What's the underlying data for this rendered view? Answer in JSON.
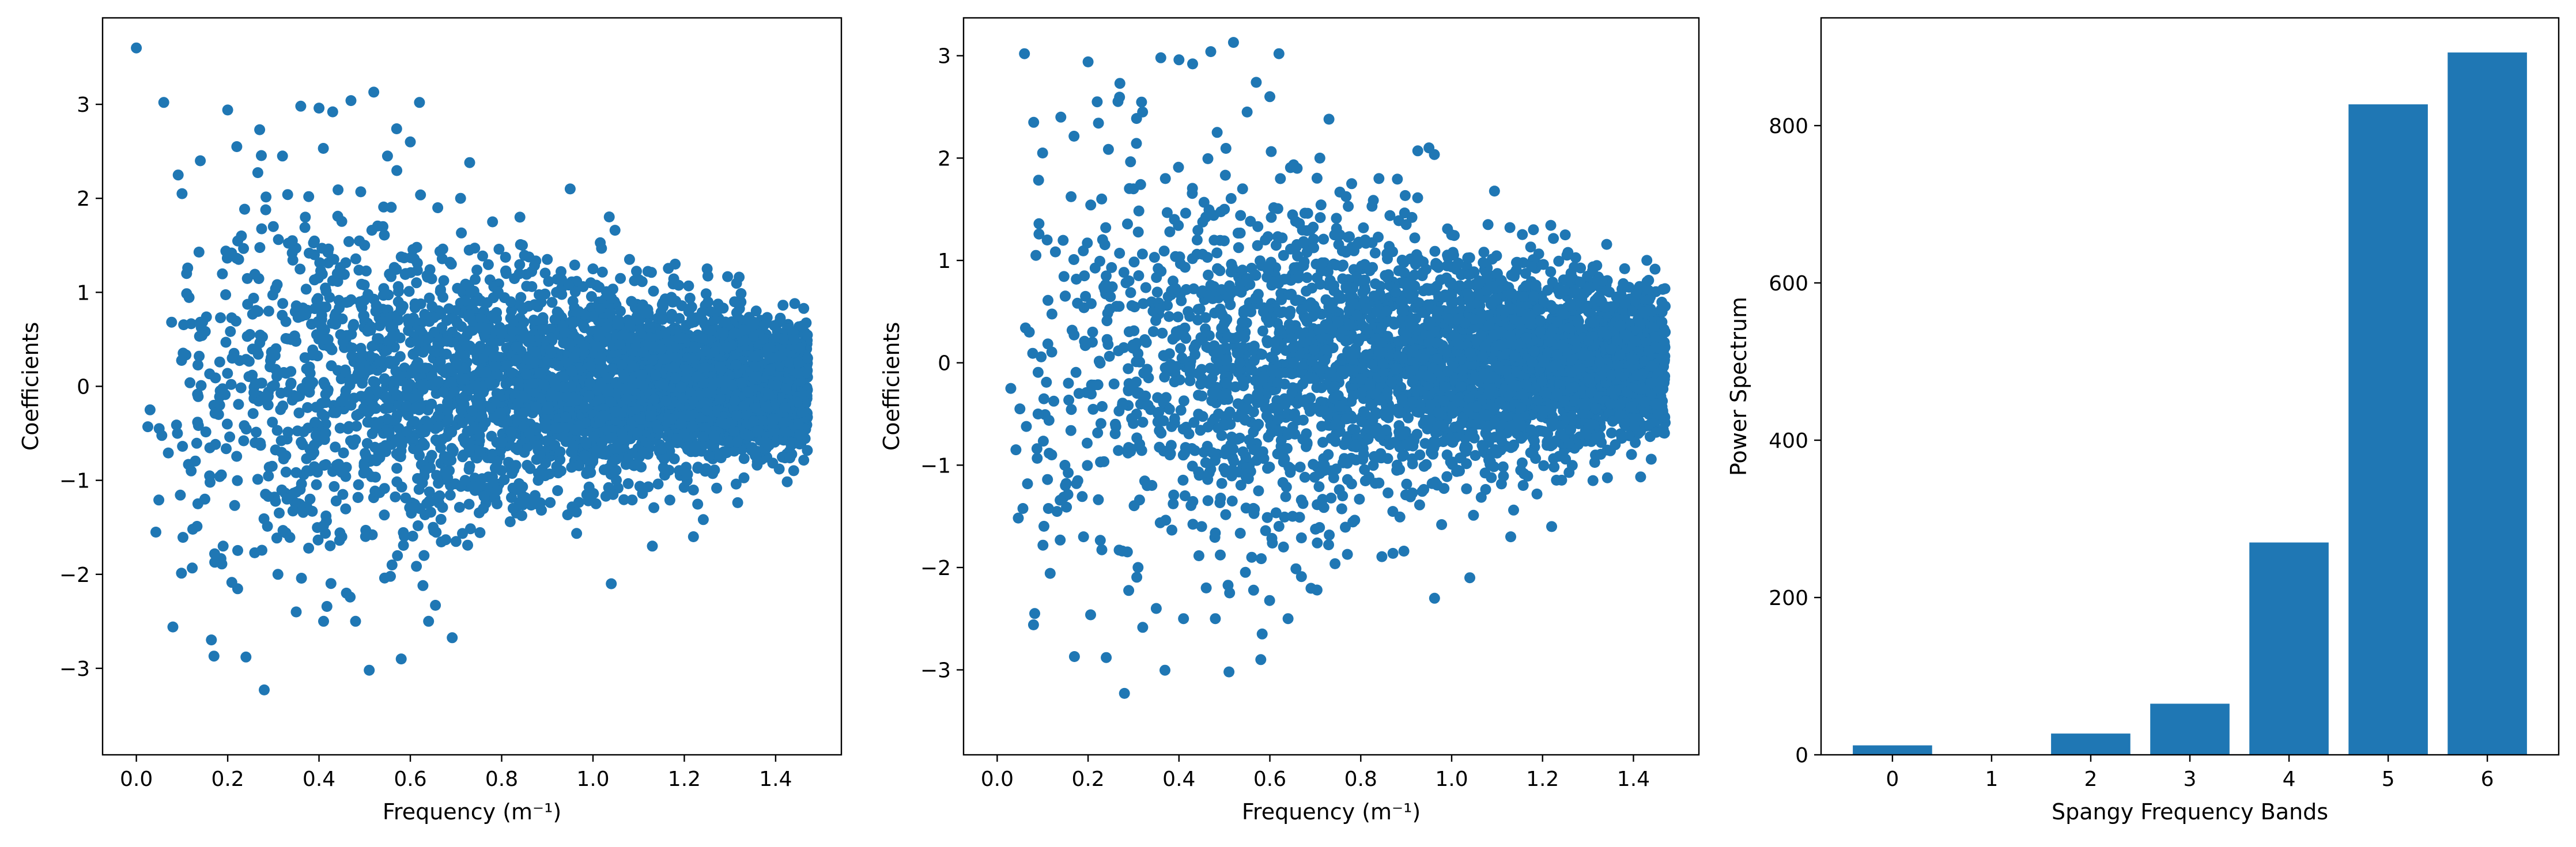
{
  "chart_data": [
    {
      "type": "scatter",
      "xlabel": "Frequency (m⁻¹)",
      "ylabel": "Coefficients",
      "xlim": [
        -0.074,
        1.544
      ],
      "ylim": [
        -3.92,
        3.92
      ],
      "xticks": [
        0.0,
        0.2,
        0.4,
        0.6,
        0.8,
        1.0,
        1.2,
        1.4
      ],
      "xtick_labels": [
        "0.0",
        "0.2",
        "0.4",
        "0.6",
        "0.8",
        "1.0",
        "1.2",
        "1.4"
      ],
      "yticks": [
        -3,
        -2,
        -1,
        0,
        1,
        2,
        3
      ],
      "ytick_labels": [
        "−3",
        "−2",
        "−1",
        "0",
        "1",
        "2",
        "3"
      ],
      "grid": false,
      "color": "#1f77b4",
      "marker": "circle",
      "points_shown_approx": 4000,
      "x": [
        0.0,
        0.06,
        0.1,
        0.14,
        0.2,
        0.22,
        0.27,
        0.32,
        0.36,
        0.4,
        0.43,
        0.47,
        0.52,
        0.57,
        0.62,
        0.73,
        0.95,
        0.3,
        0.37,
        0.44,
        0.5,
        0.55,
        0.6,
        0.66,
        0.71,
        0.78,
        0.84,
        0.9,
        1.0,
        1.08,
        1.18,
        1.25,
        0.08,
        0.17,
        0.24,
        0.28,
        0.35,
        0.41,
        0.48,
        0.51,
        0.58,
        0.64,
        0.03,
        0.05,
        0.09,
        0.12,
        0.15,
        0.18,
        0.21,
        0.26,
        0.29,
        0.33,
        0.38,
        0.42,
        0.45,
        0.49,
        0.53,
        0.56,
        0.59,
        0.61,
        0.65,
        0.68,
        0.72,
        0.75,
        0.79,
        0.82,
        0.86,
        0.89,
        0.93,
        0.97,
        1.02,
        1.06,
        1.11,
        1.15,
        1.2,
        1.24,
        1.29,
        1.33,
        1.38,
        1.42,
        1.45,
        1.47,
        0.11,
        0.19,
        0.23,
        0.31,
        0.39,
        0.46,
        0.54,
        0.63,
        0.69,
        0.76,
        0.81,
        0.88,
        0.92,
        0.99,
        1.04,
        1.13,
        1.22,
        1.31,
        1.36,
        1.44
      ],
      "y": [
        3.6,
        3.02,
        2.05,
        2.4,
        2.94,
        2.55,
        2.73,
        2.45,
        2.98,
        2.96,
        2.92,
        3.04,
        3.13,
        2.74,
        3.02,
        2.38,
        2.1,
        1.7,
        1.8,
        1.2,
        1.5,
        2.45,
        2.6,
        1.9,
        2.0,
        1.75,
        1.8,
        1.35,
        1.25,
        1.35,
        1.3,
        1.25,
        -2.56,
        -2.87,
        -2.88,
        -3.23,
        -2.4,
        -2.5,
        -2.5,
        -3.02,
        -2.9,
        -2.5,
        -0.25,
        -0.45,
        -0.5,
        -0.9,
        -1.2,
        -0.3,
        0.3,
        -0.6,
        0.8,
        -1.2,
        -0.9,
        0.5,
        -1.6,
        0.9,
        -0.4,
        -1.9,
        1.2,
        0.2,
        -1.5,
        0.7,
        -1.0,
        0.4,
        -0.8,
        0.9,
        -0.5,
        0.6,
        -0.9,
        0.5,
        -0.6,
        0.8,
        -0.7,
        0.4,
        -0.5,
        0.7,
        -0.4,
        0.6,
        -0.6,
        0.5,
        -0.4,
        0.3,
        1.2,
        -1.7,
        1.6,
        -2.0,
        1.4,
        -2.2,
        1.7,
        -1.8,
        1.3,
        -1.3,
        1.2,
        -1.0,
        1.0,
        -0.9,
        -2.1,
        -1.7,
        -1.6,
        0.9,
        -0.8,
        0.5
      ]
    },
    {
      "type": "scatter",
      "xlabel": "Frequency (m⁻¹)",
      "ylabel": "Coefficients",
      "xlim": [
        -0.074,
        1.544
      ],
      "ylim": [
        -3.83,
        3.37
      ],
      "xticks": [
        0.0,
        0.2,
        0.4,
        0.6,
        0.8,
        1.0,
        1.2,
        1.4
      ],
      "xtick_labels": [
        "0.0",
        "0.2",
        "0.4",
        "0.6",
        "0.8",
        "1.0",
        "1.2",
        "1.4"
      ],
      "yticks": [
        -3,
        -2,
        -1,
        0,
        1,
        2,
        3
      ],
      "ytick_labels": [
        "−3",
        "−2",
        "−1",
        "0",
        "1",
        "2",
        "3"
      ],
      "grid": false,
      "color": "#1f77b4",
      "marker": "circle",
      "points_shown_approx": 4000,
      "x": [
        0.06,
        0.1,
        0.14,
        0.2,
        0.22,
        0.27,
        0.32,
        0.36,
        0.4,
        0.43,
        0.47,
        0.52,
        0.57,
        0.62,
        0.73,
        0.95,
        0.3,
        0.37,
        0.44,
        0.5,
        0.55,
        0.6,
        0.66,
        0.71,
        0.78,
        0.84,
        0.9,
        1.0,
        1.08,
        1.18,
        1.25,
        0.08,
        0.17,
        0.24,
        0.28,
        0.35,
        0.41,
        0.48,
        0.51,
        0.58,
        0.64,
        0.03,
        0.05,
        0.09,
        0.12,
        0.15,
        0.18,
        0.21,
        0.26,
        0.29,
        0.33,
        0.38,
        0.42,
        0.45,
        0.49,
        0.53,
        0.56,
        0.59,
        0.61,
        0.65,
        0.68,
        0.72,
        0.75,
        0.79,
        0.82,
        0.86,
        0.89,
        0.93,
        0.97,
        1.02,
        1.06,
        1.11,
        1.15,
        1.2,
        1.24,
        1.29,
        1.33,
        1.38,
        1.42,
        1.45,
        1.47,
        0.11,
        0.19,
        0.23,
        0.31,
        0.39,
        0.46,
        0.54,
        0.63,
        0.69,
        0.76,
        0.81,
        0.88,
        0.92,
        0.99,
        1.04,
        1.13,
        1.22,
        1.31,
        1.36,
        1.44
      ],
      "y": [
        3.02,
        2.05,
        2.4,
        2.94,
        2.55,
        2.73,
        2.45,
        2.98,
        2.96,
        2.92,
        3.04,
        3.13,
        2.74,
        3.02,
        2.38,
        2.1,
        1.7,
        1.8,
        1.2,
        1.5,
        2.45,
        2.6,
        1.9,
        2.0,
        1.75,
        1.8,
        1.35,
        1.25,
        1.35,
        1.3,
        1.25,
        -2.56,
        -2.87,
        -2.88,
        -3.23,
        -2.4,
        -2.5,
        -2.5,
        -3.02,
        -2.9,
        -2.5,
        -0.25,
        -0.45,
        -0.5,
        -0.9,
        -1.2,
        -0.3,
        0.3,
        -0.6,
        0.8,
        -1.2,
        -0.9,
        0.5,
        -1.6,
        0.9,
        -0.4,
        -1.9,
        1.2,
        0.2,
        -1.5,
        0.7,
        -1.0,
        0.4,
        -0.8,
        0.9,
        -0.5,
        0.6,
        -0.9,
        0.5,
        -0.6,
        0.8,
        -0.7,
        0.4,
        -0.5,
        0.7,
        -0.4,
        0.6,
        -0.6,
        0.5,
        -0.4,
        0.3,
        1.2,
        -1.7,
        1.6,
        -2.0,
        1.4,
        -2.2,
        1.7,
        -1.8,
        1.3,
        -1.3,
        1.2,
        -1.0,
        1.0,
        -0.9,
        -2.1,
        -1.7,
        -1.6,
        0.9,
        -0.8,
        0.5
      ]
    },
    {
      "type": "bar",
      "xlabel": "Spangy Frequency Bands",
      "ylabel": "Power Spectrum",
      "categories": [
        "0",
        "1",
        "2",
        "3",
        "4",
        "5",
        "6"
      ],
      "values": [
        12,
        0,
        27,
        65,
        270,
        827,
        893
      ],
      "xlim": [
        -0.72,
        6.72
      ],
      "ylim": [
        0,
        937
      ],
      "yticks": [
        0,
        200,
        400,
        600,
        800
      ],
      "ytick_labels": [
        "0",
        "200",
        "400",
        "600",
        "800"
      ],
      "grid": false,
      "color": "#1f77b4"
    }
  ]
}
